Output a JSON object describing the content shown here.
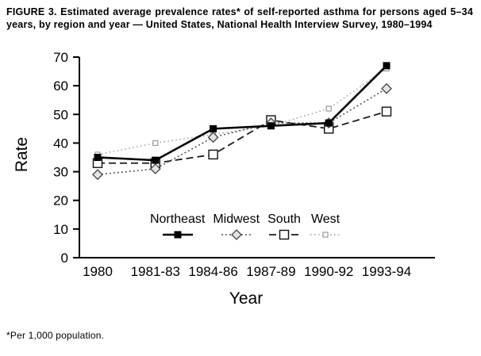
{
  "figure": {
    "title": "FIGURE 3. Estimated average prevalence rates* of self-reported asthma for persons aged 5–34 years, by region and year — United States, National Health Interview Survey, 1980–1994",
    "footnote": "*Per 1,000 population."
  },
  "chart_data": {
    "type": "line",
    "title": "Estimated average prevalence rates of self-reported asthma for persons aged 5–34 years, by region and year — United States, 1980–1994",
    "xlabel": "Year",
    "ylabel": "Rate",
    "ylim": [
      0,
      70
    ],
    "ytick_step": 10,
    "grid": false,
    "legend_position": "inside-bottom",
    "categories": [
      "1980",
      "1981-83",
      "1984-86",
      "1987-89",
      "1990-92",
      "1993-94"
    ],
    "series": [
      {
        "name": "Northeast",
        "values": [
          35,
          34,
          45,
          46,
          47,
          67
        ],
        "line": "solid",
        "marker": "filled-square",
        "color": "#000000"
      },
      {
        "name": "Midwest",
        "values": [
          29,
          31,
          42,
          47,
          47,
          59
        ],
        "line": "dotted",
        "marker": "diamond",
        "color": "#555555"
      },
      {
        "name": "South",
        "values": [
          33,
          33,
          36,
          48,
          45,
          51
        ],
        "line": "dashed",
        "marker": "open-square",
        "color": "#1a1a1a"
      },
      {
        "name": "West",
        "values": [
          36,
          40,
          43,
          46,
          52,
          66
        ],
        "line": "fine-dotted",
        "marker": "small-square",
        "color": "#999999"
      }
    ]
  }
}
